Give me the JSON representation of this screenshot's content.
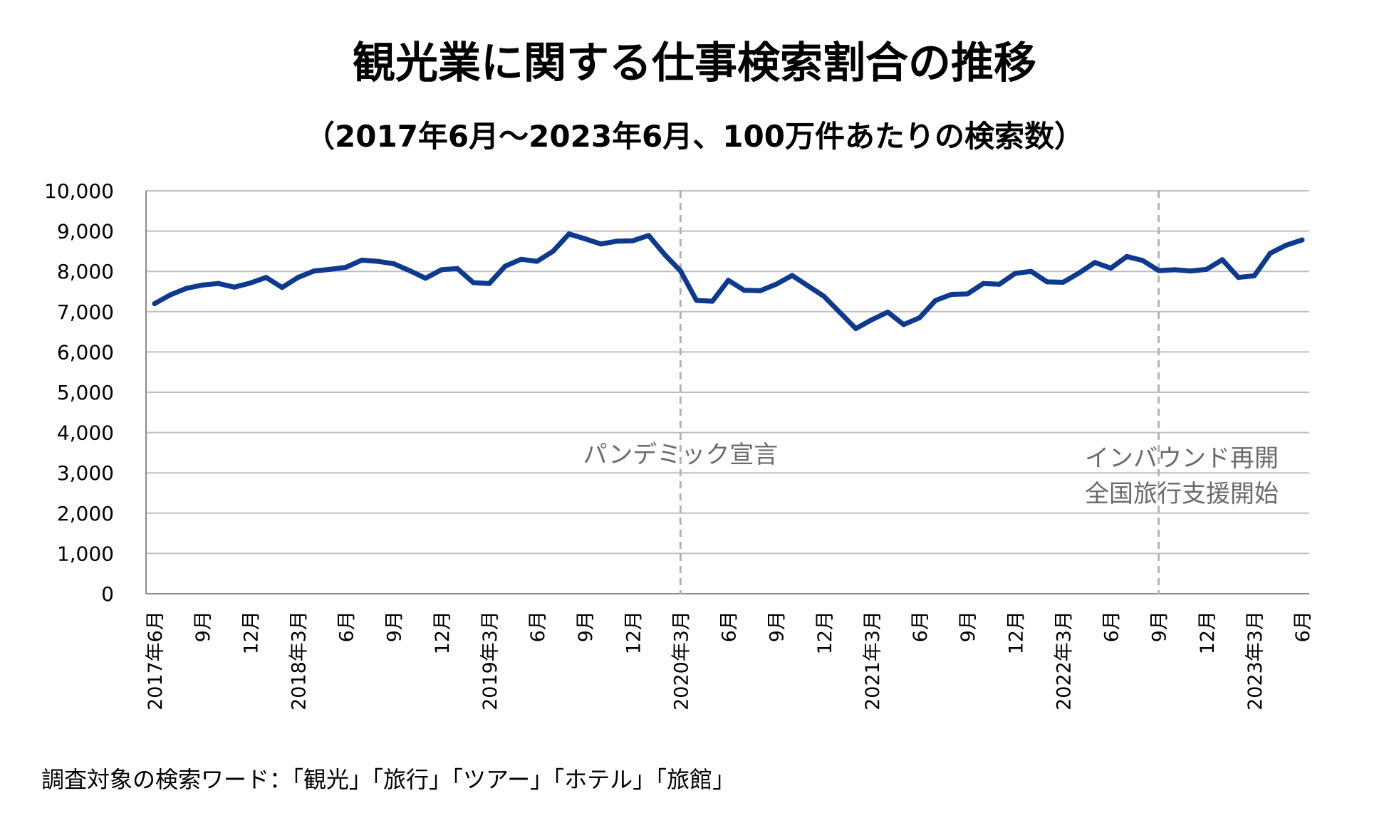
{
  "title": "観光業に関する仕事検索割合の推移",
  "subtitle": "（2017年6月～2023年6月、100万件あたりの検索数）",
  "footnote": "調査対象の検索ワード：「観光」「旅行」「ツアー」「ホテル」「旅館」",
  "chart_data": {
    "type": "line",
    "title": "観光業に関する仕事検索割合の推移",
    "subtitle": "（2017年6月～2023年6月、100万件あたりの検索数）",
    "xlabel": "",
    "ylabel": "",
    "ylim": [
      0,
      10000
    ],
    "yticks": [
      0,
      1000,
      2000,
      3000,
      4000,
      5000,
      6000,
      7000,
      8000,
      9000,
      10000
    ],
    "ytick_labels": [
      "0",
      "1,000",
      "2,000",
      "3,000",
      "4,000",
      "5,000",
      "6,000",
      "7,000",
      "8,000",
      "9,000",
      "10,000"
    ],
    "grid": true,
    "line_color": "#0d3a8f",
    "x_tick_labels": [
      {
        "index": 0,
        "label": "2017年6月"
      },
      {
        "index": 3,
        "label": "9月"
      },
      {
        "index": 6,
        "label": "12月"
      },
      {
        "index": 9,
        "label": "2018年3月"
      },
      {
        "index": 12,
        "label": "6月"
      },
      {
        "index": 15,
        "label": "9月"
      },
      {
        "index": 18,
        "label": "12月"
      },
      {
        "index": 21,
        "label": "2019年3月"
      },
      {
        "index": 24,
        "label": "6月"
      },
      {
        "index": 27,
        "label": "9月"
      },
      {
        "index": 30,
        "label": "12月"
      },
      {
        "index": 33,
        "label": "2020年3月"
      },
      {
        "index": 36,
        "label": "6月"
      },
      {
        "index": 39,
        "label": "9月"
      },
      {
        "index": 42,
        "label": "12月"
      },
      {
        "index": 45,
        "label": "2021年3月"
      },
      {
        "index": 48,
        "label": "6月"
      },
      {
        "index": 51,
        "label": "9月"
      },
      {
        "index": 54,
        "label": "12月"
      },
      {
        "index": 57,
        "label": "2022年3月"
      },
      {
        "index": 60,
        "label": "6月"
      },
      {
        "index": 63,
        "label": "9月"
      },
      {
        "index": 66,
        "label": "12月"
      },
      {
        "index": 69,
        "label": "2023年3月"
      },
      {
        "index": 72,
        "label": "6月"
      }
    ],
    "series": [
      {
        "name": "100万件あたりの検索数",
        "values": [
          7200,
          7420,
          7580,
          7660,
          7700,
          7610,
          7710,
          7850,
          7600,
          7850,
          8010,
          8050,
          8100,
          8280,
          8250,
          8190,
          8020,
          7830,
          8040,
          8070,
          7720,
          7700,
          8130,
          8300,
          8250,
          8500,
          8930,
          8810,
          8680,
          8750,
          8760,
          8890,
          8420,
          8010,
          7280,
          7260,
          7780,
          7530,
          7520,
          7680,
          7900,
          7640,
          7380,
          6980,
          6580,
          6800,
          6990,
          6680,
          6850,
          7280,
          7430,
          7440,
          7700,
          7680,
          7950,
          8000,
          7740,
          7730,
          7960,
          8220,
          8080,
          8370,
          8270,
          8020,
          8040,
          8010,
          8050,
          8290,
          7850,
          7890,
          8450,
          8650,
          8780
        ]
      }
    ],
    "annotations": [
      {
        "index": 33,
        "text": "パンデミック宣言",
        "line": "dashed"
      },
      {
        "index": 63,
        "text": "インバウンド再開",
        "text2": "全国旅行支援開始",
        "line": "dashed"
      }
    ]
  }
}
